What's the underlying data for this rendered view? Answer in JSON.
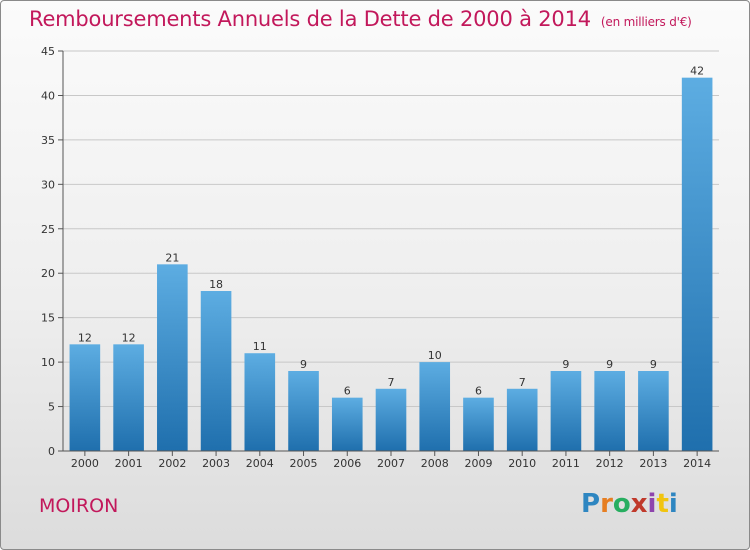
{
  "header": {
    "title": "Remboursements Annuels de la Dette de 2000 à 2014",
    "unit": "(en milliers d'€)"
  },
  "footer": {
    "place": "MOIRON",
    "logo": [
      "P",
      "r",
      "o",
      "x",
      "i",
      "t",
      "i"
    ]
  },
  "colors": {
    "title": "#c2185b",
    "bar_light": "#5dade2",
    "bar_dark": "#1f6fad",
    "logo": [
      "#2e86c1",
      "#e67e22",
      "#27ae60",
      "#c0392b",
      "#8e44ad",
      "#f1c40f",
      "#2e86c1"
    ]
  },
  "chart_data": {
    "type": "bar",
    "title": "Remboursements Annuels de la Dette de 2000 à 2014",
    "xlabel": "",
    "ylabel": "",
    "categories": [
      "2000",
      "2001",
      "2002",
      "2003",
      "2004",
      "2005",
      "2006",
      "2007",
      "2008",
      "2009",
      "2010",
      "2011",
      "2012",
      "2013",
      "2014"
    ],
    "values": [
      12,
      12,
      21,
      18,
      11,
      9,
      6,
      7,
      10,
      6,
      7,
      9,
      9,
      9,
      42
    ],
    "ylim": [
      0,
      45
    ],
    "yticks": [
      0,
      5,
      10,
      15,
      20,
      25,
      30,
      35,
      40,
      45
    ],
    "grid": true
  }
}
